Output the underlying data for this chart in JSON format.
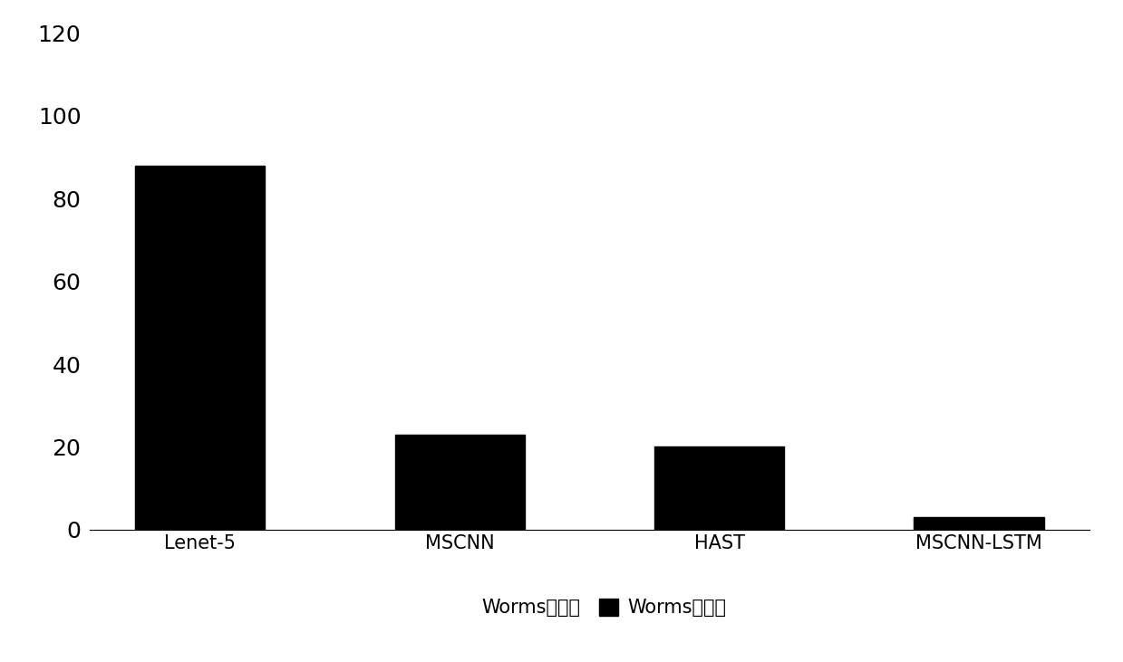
{
  "categories": [
    "Lenet-5",
    "MSCNN",
    "HAST",
    "MSCNN-LSTM"
  ],
  "miss_rate_values": [
    88,
    23,
    20,
    3
  ],
  "bar_color": "#000000",
  "bar_width": 0.5,
  "ylim": [
    0,
    120
  ],
  "yticks": [
    0,
    20,
    40,
    60,
    80,
    100,
    120
  ],
  "background_color": "#ffffff",
  "legend_label_accuracy": "Worms准确率",
  "legend_label_miss": "Worms漏报率",
  "fontsize_yticks": 18,
  "fontsize_xticks": 15,
  "fontsize_legend": 15
}
